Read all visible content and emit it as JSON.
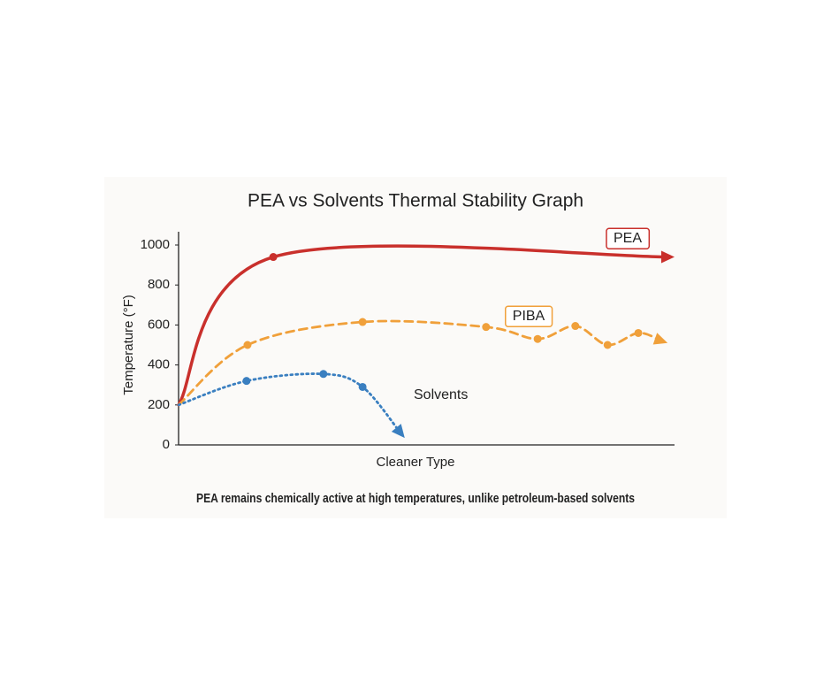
{
  "chart_data": {
    "type": "line",
    "title": "PEA vs Solvents Thermal Stability Graph",
    "x_label": "Cleaner Type",
    "y_label": "Temperature (°F)",
    "caption": "PEA remains chemically active at high temperatures, unlike petroleum-based solvents",
    "xlim": [
      0,
      10
    ],
    "ylim": [
      0,
      1000
    ],
    "yticks": [
      0,
      200,
      400,
      600,
      800,
      1000
    ],
    "grid": false,
    "series": [
      {
        "name": "PEA",
        "color": "#c9302c",
        "style": "solid",
        "x": [
          0,
          1.91,
          10
        ],
        "values": [
          200,
          940,
          940
        ]
      },
      {
        "name": "PIBA",
        "color": "#f0a03a",
        "style": "dashed",
        "x": [
          0,
          1.39,
          3.71,
          6.2,
          7.24,
          8.0,
          8.65,
          9.27,
          9.86
        ],
        "values": [
          200,
          500,
          615,
          590,
          530,
          595,
          500,
          560,
          510
        ]
      },
      {
        "name": "Solvents",
        "color": "#3a7fc0",
        "style": "dotted",
        "x": [
          0,
          1.37,
          2.92,
          3.71,
          4.56
        ],
        "values": [
          200,
          320,
          355,
          290,
          35
        ]
      }
    ]
  }
}
